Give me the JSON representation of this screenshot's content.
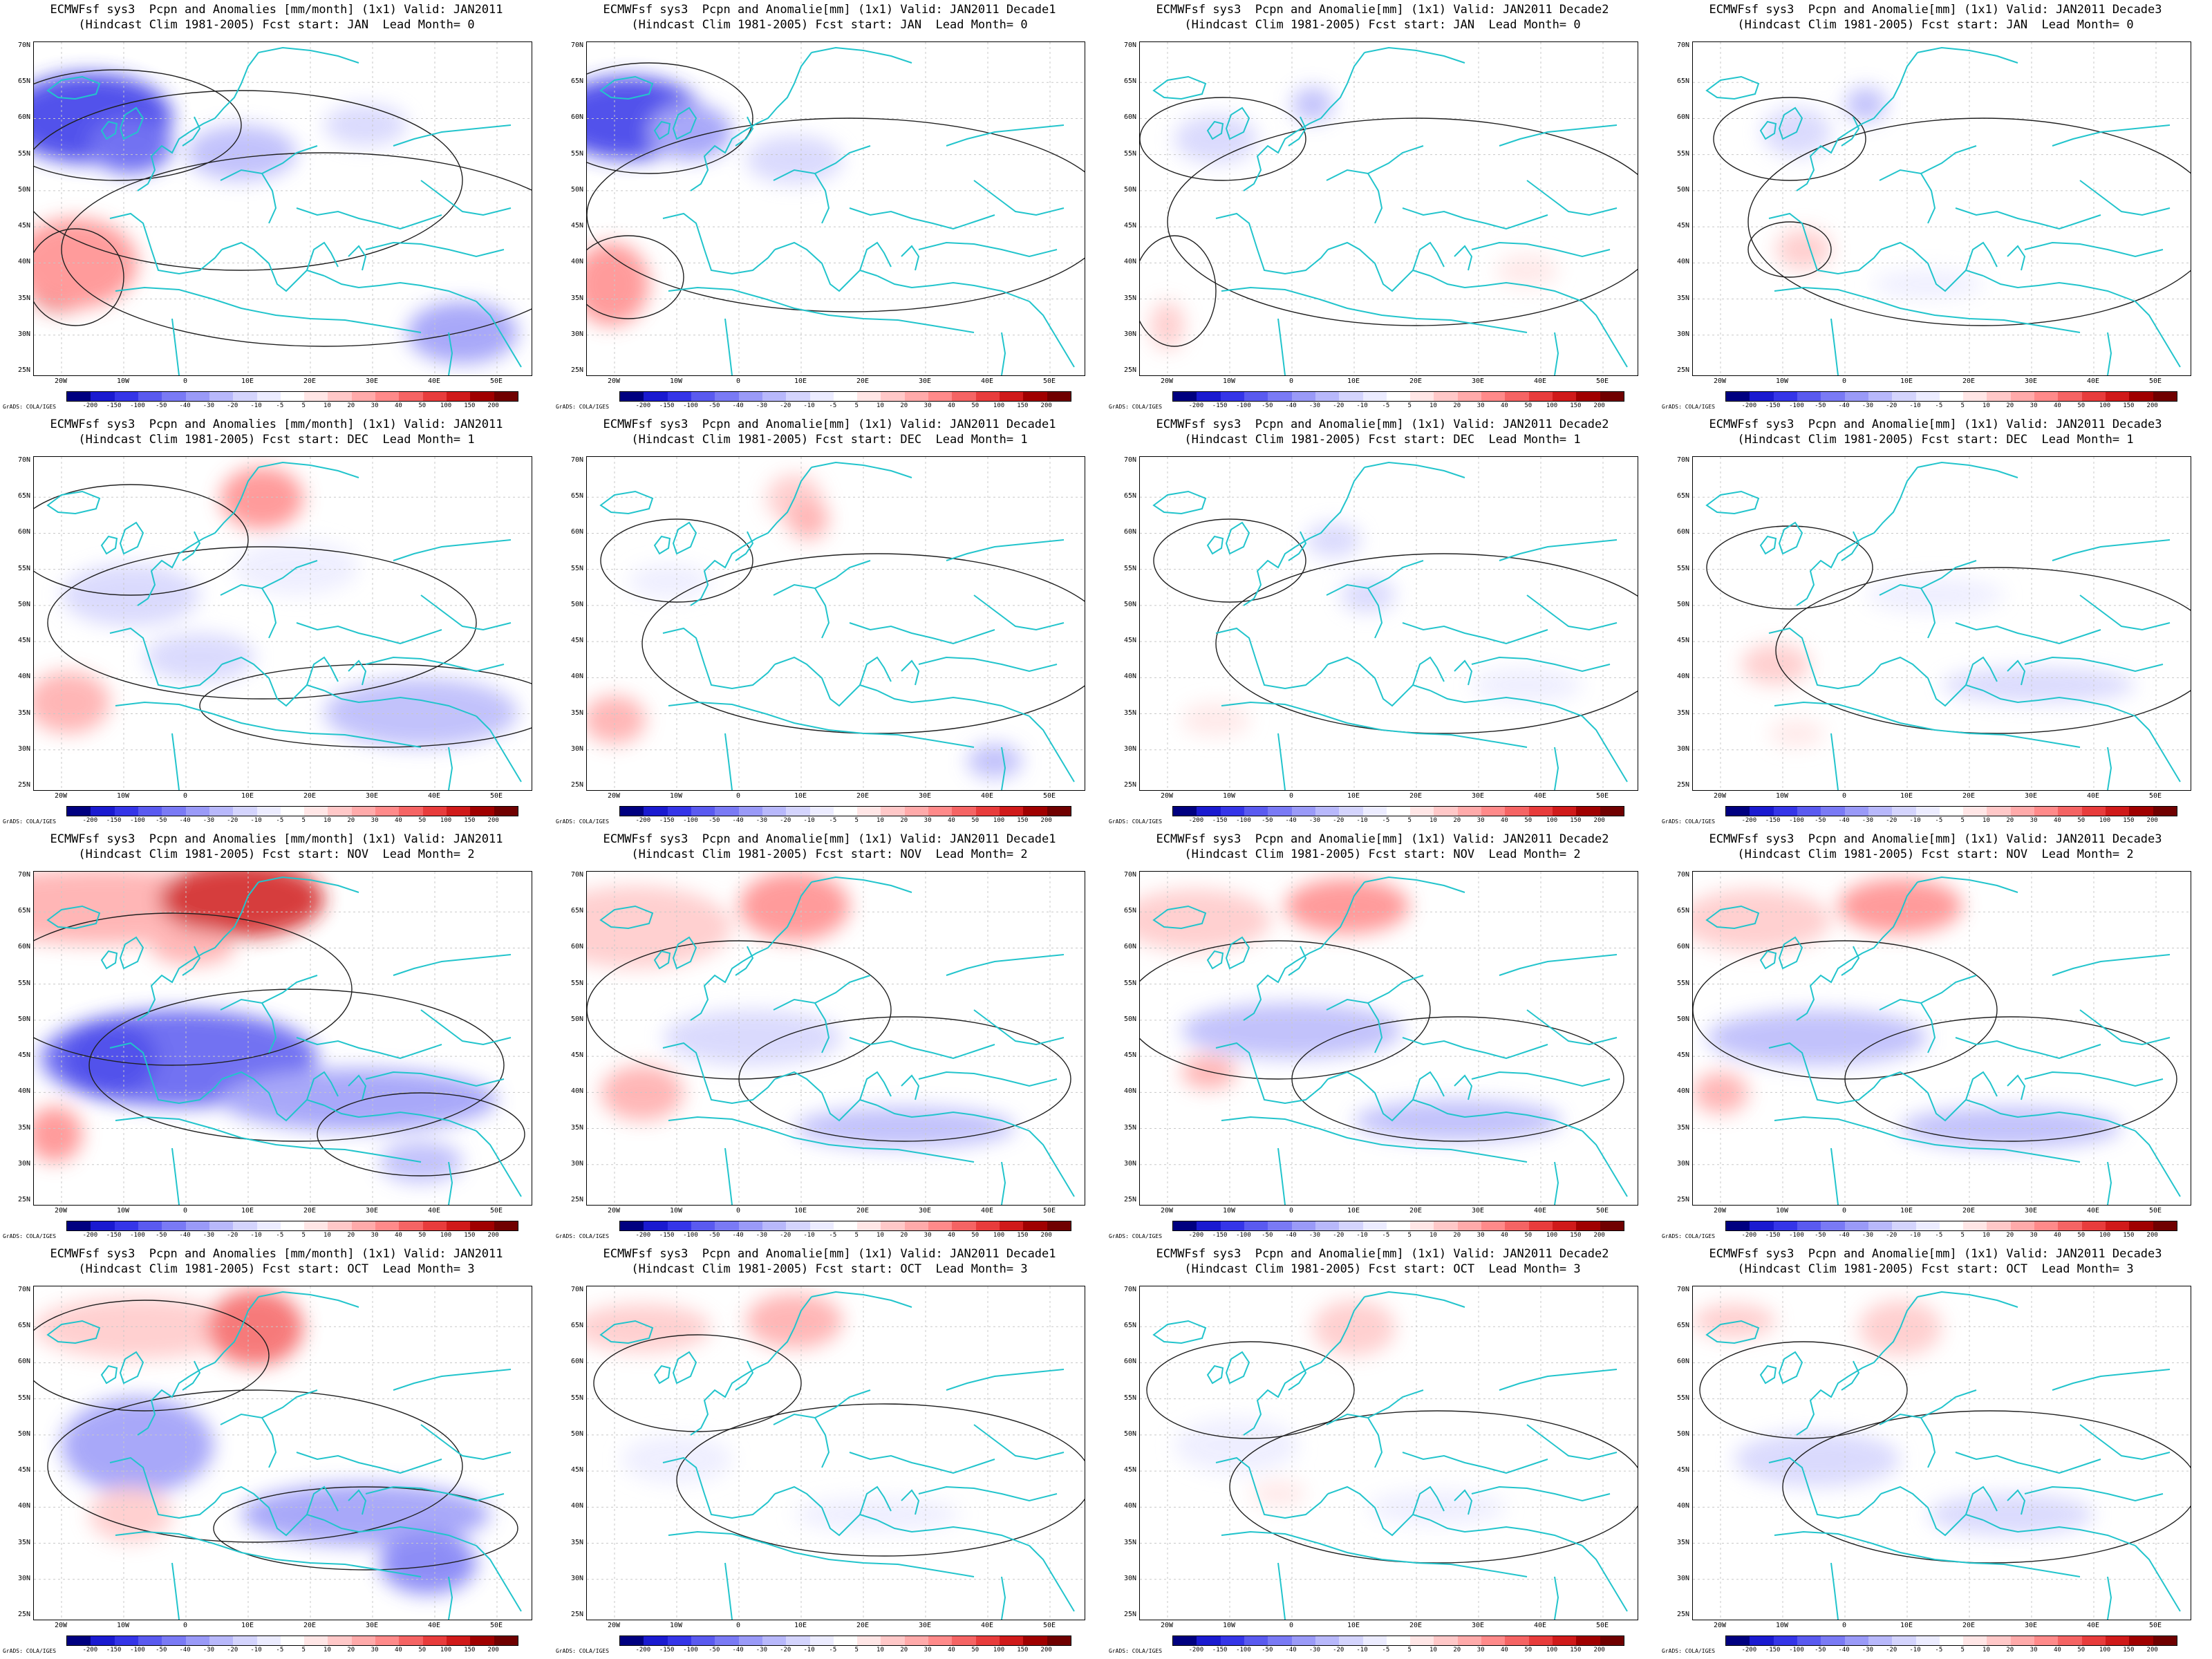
{
  "colorbar": {
    "labels": [
      "-200",
      "-150",
      "-100",
      "-50",
      "-40",
      "-30",
      "-20",
      "-10",
      "-5",
      "5",
      "10",
      "20",
      "30",
      "40",
      "50",
      "100",
      "150",
      "200"
    ],
    "colors": [
      "#000080",
      "#1a1ad0",
      "#3535e8",
      "#5a5af0",
      "#7a7af5",
      "#9a9af8",
      "#b8b8fb",
      "#d4d4fd",
      "#ececff",
      "#ffffff",
      "#ffe6e6",
      "#ffc8c8",
      "#ffaaaa",
      "#ff8a8a",
      "#f56464",
      "#e83c3c",
      "#d01a1a",
      "#a00000",
      "#700000"
    ]
  },
  "credit": "GrADS: COLA/IGES",
  "axes": {
    "lat": [
      "70N",
      "65N",
      "60N",
      "55N",
      "50N",
      "45N",
      "40N",
      "35N",
      "30N",
      "25N"
    ],
    "lon": [
      "20W",
      "10W",
      "0",
      "10E",
      "20E",
      "30E",
      "40E",
      "50E"
    ]
  },
  "panels": [
    {
      "title": "ECMWFsf sys3  Pcpn and Anomalies [mm/month] (1x1) Valid: JAN2011",
      "subtitle": "(Hindcast Clim 1981-2005) Fcst start: JAN  Lead Month= 0"
    },
    {
      "title": "ECMWFsf sys3  Pcpn and Anomalie[mm] (1x1) Valid: JAN2011 Decade1",
      "subtitle": "(Hindcast Clim 1981-2005) Fcst start: JAN  Lead Month= 0"
    },
    {
      "title": "ECMWFsf sys3  Pcpn and Anomalie[mm] (1x1) Valid: JAN2011 Decade2",
      "subtitle": "(Hindcast Clim 1981-2005) Fcst start: JAN  Lead Month= 0"
    },
    {
      "title": "ECMWFsf sys3  Pcpn and Anomalie[mm] (1x1) Valid: JAN2011 Decade3",
      "subtitle": "(Hindcast Clim 1981-2005) Fcst start: JAN  Lead Month= 0"
    },
    {
      "title": "ECMWFsf sys3  Pcpn and Anomalies [mm/month] (1x1) Valid: JAN2011",
      "subtitle": "(Hindcast Clim 1981-2005) Fcst start: DEC  Lead Month= 1"
    },
    {
      "title": "ECMWFsf sys3  Pcpn and Anomalie[mm] (1x1) Valid: JAN2011 Decade1",
      "subtitle": "(Hindcast Clim 1981-2005) Fcst start: DEC  Lead Month= 1"
    },
    {
      "title": "ECMWFsf sys3  Pcpn and Anomalie[mm] (1x1) Valid: JAN2011 Decade2",
      "subtitle": "(Hindcast Clim 1981-2005) Fcst start: DEC  Lead Month= 1"
    },
    {
      "title": "ECMWFsf sys3  Pcpn and Anomalie[mm] (1x1) Valid: JAN2011 Decade3",
      "subtitle": "(Hindcast Clim 1981-2005) Fcst start: DEC  Lead Month= 1"
    },
    {
      "title": "ECMWFsf sys3  Pcpn and Anomalies [mm/month] (1x1) Valid: JAN2011",
      "subtitle": "(Hindcast Clim 1981-2005) Fcst start: NOV  Lead Month= 2"
    },
    {
      "title": "ECMWFsf sys3  Pcpn and Anomalie[mm] (1x1) Valid: JAN2011 Decade1",
      "subtitle": "(Hindcast Clim 1981-2005) Fcst start: NOV  Lead Month= 2"
    },
    {
      "title": "ECMWFsf sys3  Pcpn and Anomalie[mm] (1x1) Valid: JAN2011 Decade2",
      "subtitle": "(Hindcast Clim 1981-2005) Fcst start: NOV  Lead Month= 2"
    },
    {
      "title": "ECMWFsf sys3  Pcpn and Anomalie[mm] (1x1) Valid: JAN2011 Decade3",
      "subtitle": "(Hindcast Clim 1981-2005) Fcst start: NOV  Lead Month= 2"
    },
    {
      "title": "ECMWFsf sys3  Pcpn and Anomalies [mm/month] (1x1) Valid: JAN2011",
      "subtitle": "(Hindcast Clim 1981-2005) Fcst start: OCT  Lead Month= 3"
    },
    {
      "title": "ECMWFsf sys3  Pcpn and Anomalie[mm] (1x1) Valid: JAN2011 Decade1",
      "subtitle": "(Hindcast Clim 1981-2005) Fcst start: OCT  Lead Month= 3"
    },
    {
      "title": "ECMWFsf sys3  Pcpn and Anomalie[mm] (1x1) Valid: JAN2011 Decade2",
      "subtitle": "(Hindcast Clim 1981-2005) Fcst start: OCT  Lead Month= 3"
    },
    {
      "title": "ECMWFsf sys3  Pcpn and Anomalie[mm] (1x1) Valid: JAN2011 Decade3",
      "subtitle": "(Hindcast Clim 1981-2005) Fcst start: OCT  Lead Month= 3"
    }
  ]
}
